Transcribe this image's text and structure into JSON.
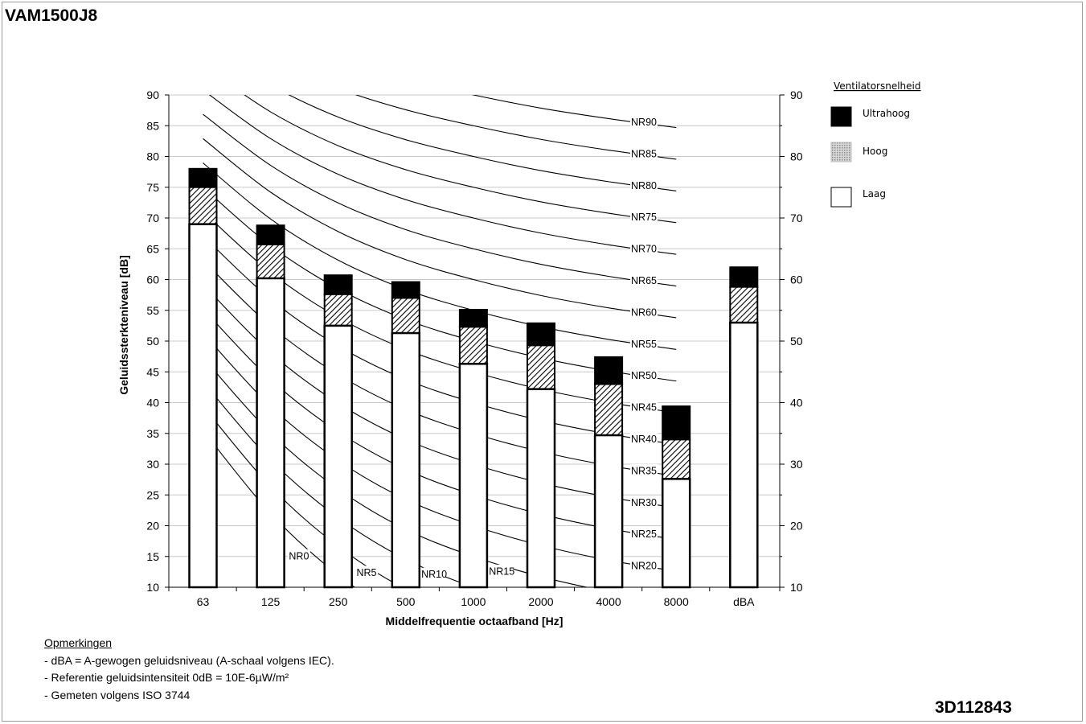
{
  "page": {
    "title": "VAM1500J8",
    "doc_code": "3D112843"
  },
  "notes": {
    "header": "Opmerkingen",
    "lines": [
      "- dBA = A-gewogen geluidsniveau (A-schaal volgens IEC).",
      "- Referentie geluidsintensiteit 0dB = 10E-6µW/m²",
      "- Gemeten volgens ISO 3744"
    ]
  },
  "legend": {
    "title": "Ventilatorsnelheid",
    "items": [
      {
        "label": "Ultrahoog",
        "style": "solid-black"
      },
      {
        "label": "Hoog",
        "style": "dotted-grey"
      },
      {
        "label": "Laag",
        "style": "white"
      }
    ]
  },
  "chart_data": {
    "type": "bar",
    "stacked_overlay": true,
    "xlabel": "Middelfrequentie octaafband [Hz]",
    "ylabel": "Geluidssterkteniveau [dB]",
    "ylim": [
      10,
      90
    ],
    "yticks_left": [
      10,
      15,
      20,
      25,
      30,
      35,
      40,
      45,
      50,
      55,
      60,
      65,
      70,
      75,
      80,
      85,
      90
    ],
    "yticks_right": [
      10,
      20,
      30,
      40,
      50,
      60,
      70,
      80,
      90
    ],
    "grid": true,
    "categories": [
      "63",
      "125",
      "250",
      "500",
      "1000",
      "2000",
      "4000",
      "8000",
      "dBA"
    ],
    "series": [
      {
        "name": "Laag",
        "values": [
          69,
          60.2,
          52.5,
          51.3,
          46.3,
          42.2,
          34.7,
          27.6,
          53
        ]
      },
      {
        "name": "Hoog",
        "values": [
          75,
          65.7,
          57.6,
          57,
          52.3,
          49.3,
          43,
          34,
          58.8
        ]
      },
      {
        "name": "Ultrahoog",
        "values": [
          78,
          68.8,
          60.7,
          59.6,
          55.1,
          52.9,
          47.4,
          39.4,
          62
        ]
      }
    ],
    "nr_curves": {
      "labels": [
        "NR0",
        "NR5",
        "NR10",
        "NR15",
        "NR20",
        "NR25",
        "NR30",
        "NR35",
        "NR40",
        "NR45",
        "NR50",
        "NR55",
        "NR60",
        "NR65",
        "NR70",
        "NR75",
        "NR80",
        "NR85",
        "NR90"
      ],
      "levels": [
        0,
        5,
        10,
        15,
        20,
        25,
        30,
        35,
        40,
        45,
        50,
        55,
        60,
        65,
        70,
        75,
        80,
        85,
        90
      ],
      "bands": [
        "63",
        "125",
        "250",
        "500",
        "1000",
        "2000",
        "4000",
        "8000"
      ],
      "a": [
        35.5,
        22.0,
        12.0,
        4.8,
        0,
        -3.5,
        -6.1,
        -8.0
      ],
      "b": [
        0.79,
        0.87,
        0.93,
        0.974,
        1.0,
        1.015,
        1.025,
        1.03
      ]
    }
  }
}
